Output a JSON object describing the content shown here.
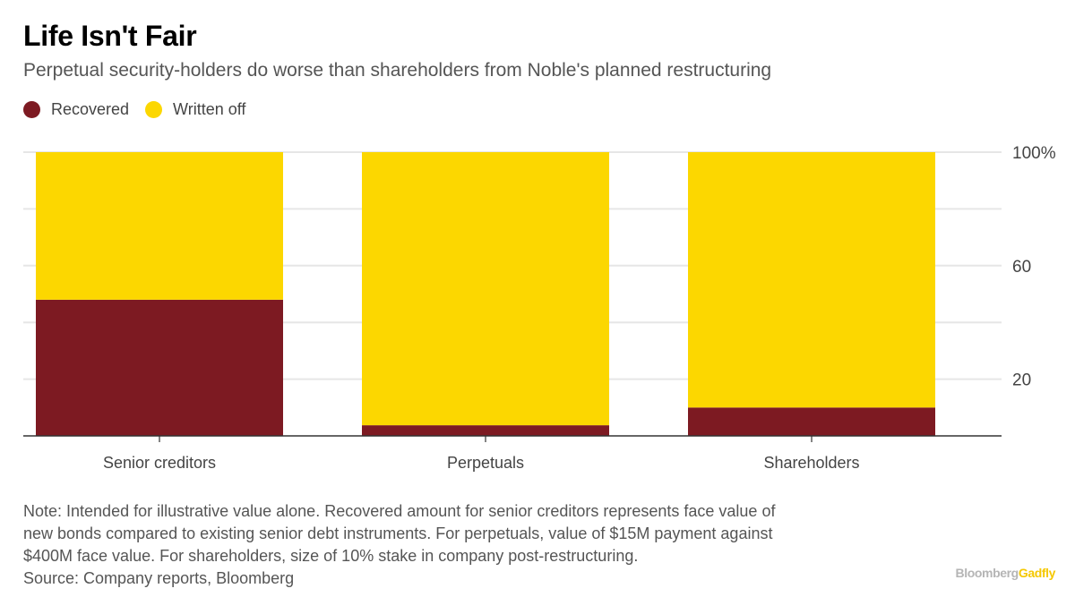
{
  "title": "Life Isn't Fair",
  "subtitle": "Perpetual security-holders do worse than shareholders from Noble's planned restructuring",
  "legend": [
    {
      "label": "Recovered",
      "color": "#7d1a22"
    },
    {
      "label": "Written off",
      "color": "#fcd700"
    }
  ],
  "chart_data": {
    "type": "bar",
    "stacked": true,
    "categories": [
      "Senior creditors",
      "Perpetuals",
      "Shareholders"
    ],
    "series": [
      {
        "name": "Recovered",
        "values": [
          48,
          3.75,
          10
        ],
        "color": "#7d1a22"
      },
      {
        "name": "Written off",
        "values": [
          52,
          96.25,
          90
        ],
        "color": "#fcd700"
      }
    ],
    "ylim": [
      0,
      100
    ],
    "yticks": [
      {
        "value": 100,
        "label": "100%"
      },
      {
        "value": 60,
        "label": "60"
      },
      {
        "value": 20,
        "label": "20"
      }
    ],
    "gridlines": [
      20,
      40,
      60,
      80,
      100
    ],
    "y_axis_side": "right"
  },
  "note": [
    "Note: Intended for illustrative value alone. Recovered amount for senior creditors represents face value of",
    "new bonds compared to existing senior debt instruments. For perpetuals, value of $15M payment against",
    "$400M face value. For shareholders, size of 10% stake in company post-restructuring.",
    "Source: Company reports, Bloomberg"
  ],
  "branding": {
    "part1": "Bloomberg",
    "part2": "Gadfly"
  }
}
